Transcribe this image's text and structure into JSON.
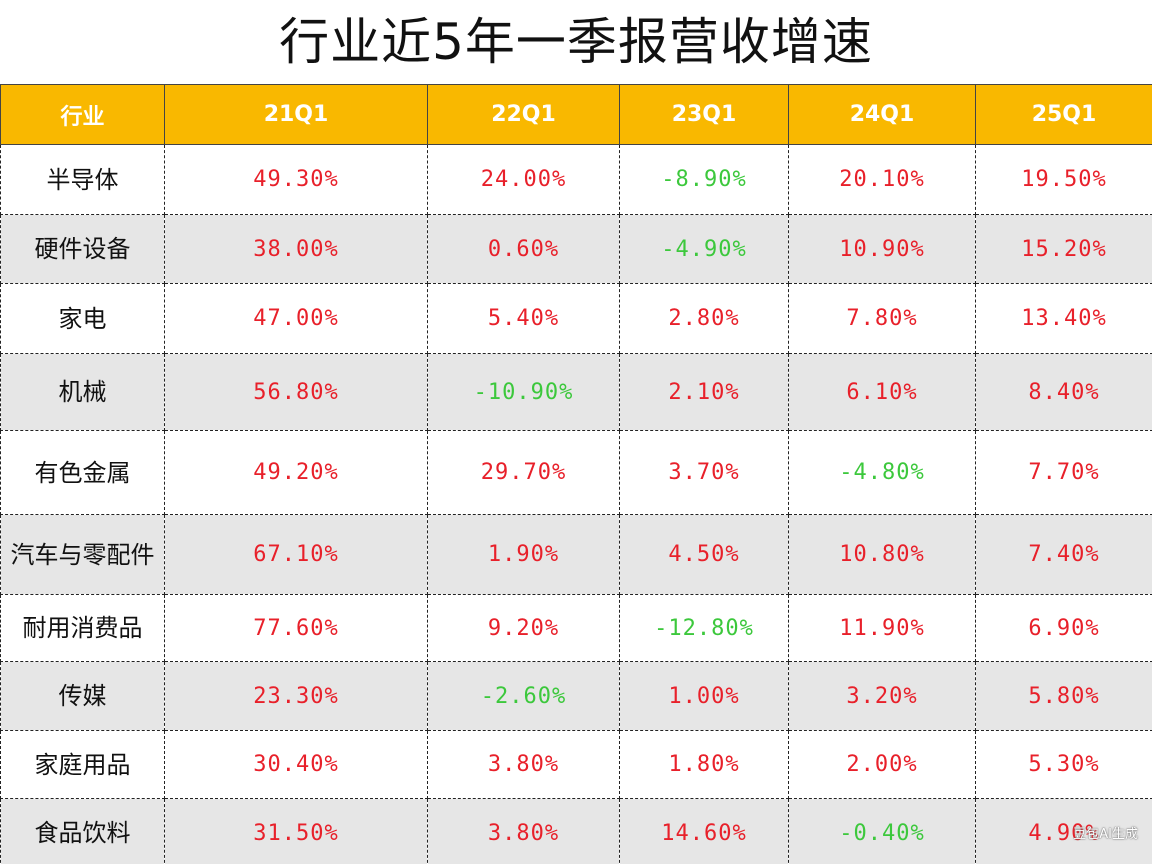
{
  "title": "行业近5年一季报营收增速",
  "header": {
    "industry": "行业",
    "periods": [
      "21Q1",
      "22Q1",
      "23Q1",
      "24Q1",
      "25Q1"
    ]
  },
  "rows": [
    {
      "name": "半导体",
      "values": [
        "49.30%",
        "24.00%",
        "-8.90%",
        "20.10%",
        "19.50%"
      ]
    },
    {
      "name": "硬件设备",
      "values": [
        "38.00%",
        "0.60%",
        "-4.90%",
        "10.90%",
        "15.20%"
      ]
    },
    {
      "name": "家电",
      "values": [
        "47.00%",
        "5.40%",
        "2.80%",
        "7.80%",
        "13.40%"
      ]
    },
    {
      "name": "机械",
      "values": [
        "56.80%",
        "-10.90%",
        "2.10%",
        "6.10%",
        "8.40%"
      ]
    },
    {
      "name": "有色金属",
      "values": [
        "49.20%",
        "29.70%",
        "3.70%",
        "-4.80%",
        "7.70%"
      ]
    },
    {
      "name": "汽车与零配件",
      "values": [
        "67.10%",
        "1.90%",
        "4.50%",
        "10.80%",
        "7.40%"
      ]
    },
    {
      "name": "耐用消费品",
      "values": [
        "77.60%",
        "9.20%",
        "-12.80%",
        "11.90%",
        "6.90%"
      ]
    },
    {
      "name": "传媒",
      "values": [
        "23.30%",
        "-2.60%",
        "1.00%",
        "3.20%",
        "5.80%"
      ]
    },
    {
      "name": "家庭用品",
      "values": [
        "30.40%",
        "3.80%",
        "1.80%",
        "2.00%",
        "5.30%"
      ]
    },
    {
      "name": "食品饮料",
      "values": [
        "31.50%",
        "3.80%",
        "14.60%",
        "-0.40%",
        "4.90%"
      ]
    }
  ],
  "colors": {
    "header_bg": "#f9b800",
    "positive": "#e8202a",
    "negative": "#3cc83c",
    "alt_row": "#e6e6e6"
  },
  "watermark": "豆包AI生成"
}
